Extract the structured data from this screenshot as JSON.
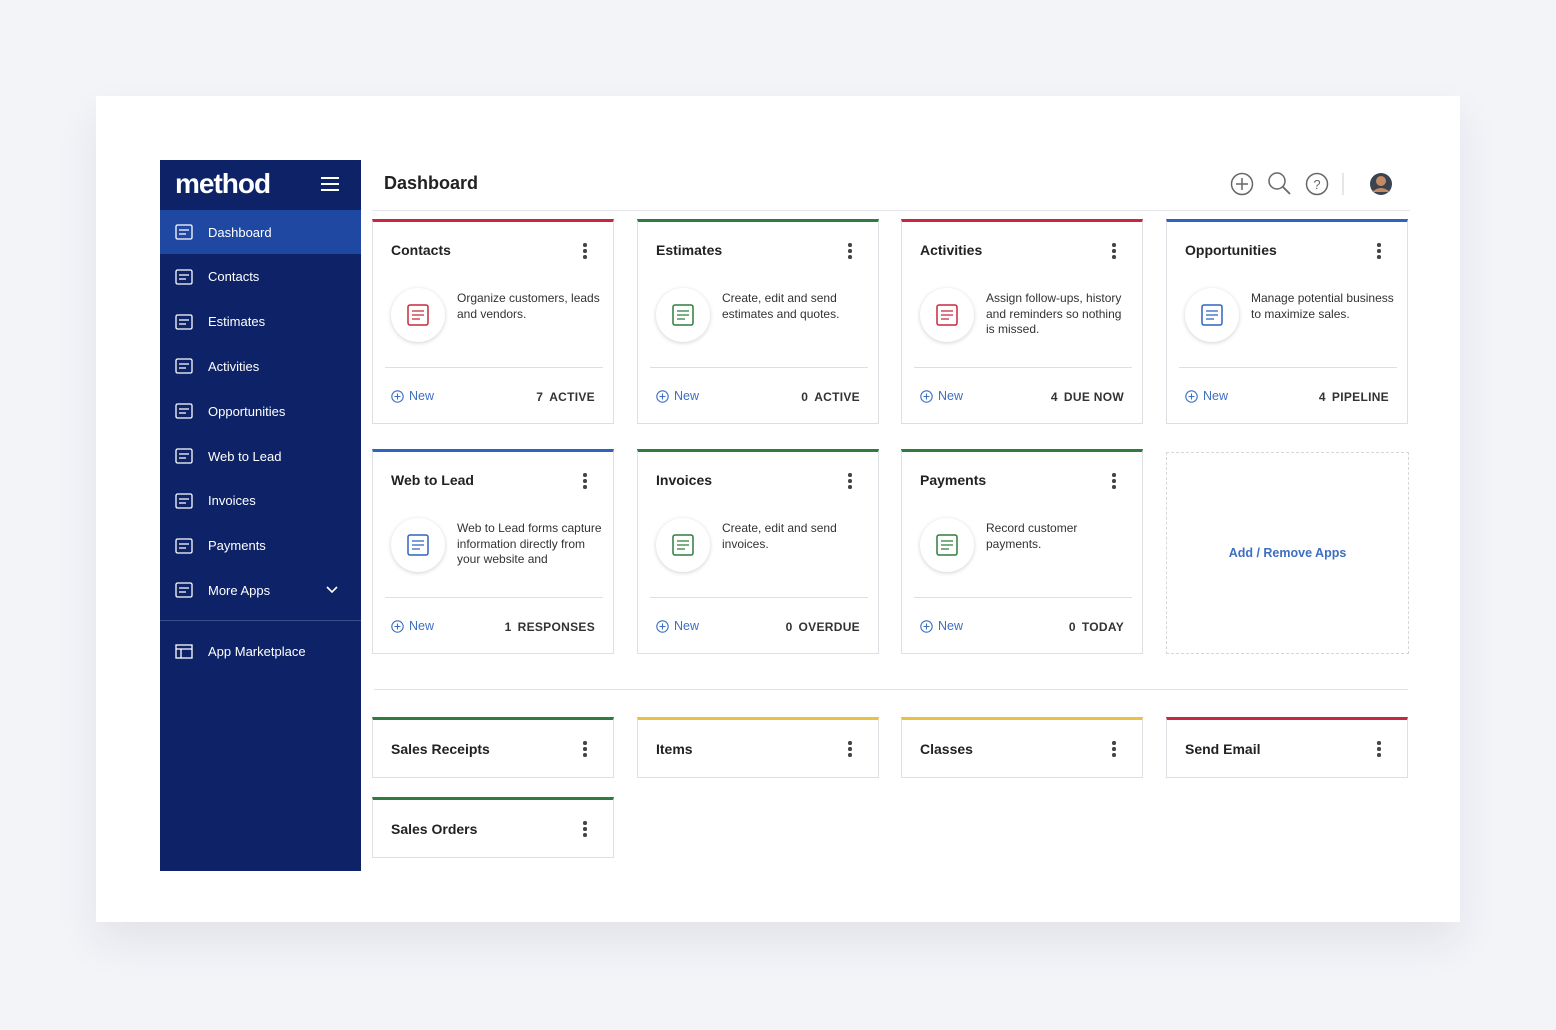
{
  "sidebar": {
    "logo": "method",
    "items": [
      {
        "label": "Dashboard",
        "active": true
      },
      {
        "label": "Contacts"
      },
      {
        "label": "Estimates"
      },
      {
        "label": "Activities"
      },
      {
        "label": "Opportunities"
      },
      {
        "label": "Web to Lead"
      },
      {
        "label": "Invoices"
      },
      {
        "label": "Payments"
      },
      {
        "label": "More Apps",
        "expandable": true
      }
    ],
    "marketplace": "App Marketplace"
  },
  "header": {
    "title": "Dashboard"
  },
  "apps": [
    {
      "title": "Contacts",
      "color": "#c8283c",
      "description": "Organize customers, leads and vendors.",
      "action": "New",
      "count": 7,
      "status": "ACTIVE"
    },
    {
      "title": "Estimates",
      "color": "#2e7d3e",
      "description": "Create, edit and send estimates and quotes.",
      "action": "New",
      "count": 0,
      "status": "ACTIVE"
    },
    {
      "title": "Activities",
      "color": "#c8283c",
      "description": "Assign follow-ups, history and reminders so nothing is missed.",
      "action": "New",
      "count": 4,
      "status": "DUE NOW"
    },
    {
      "title": "Opportunities",
      "color": "#2f63c0",
      "description": "Manage potential business to maximize sales.",
      "action": "New",
      "count": 4,
      "status": "PIPELINE"
    },
    {
      "title": "Web to Lead",
      "color": "#2f63c0",
      "description": "Web to Lead forms capture information directly from your website and",
      "action": "New",
      "count": 1,
      "status": "RESPONSES"
    },
    {
      "title": "Invoices",
      "color": "#2e7d3e",
      "description": "Create, edit and send invoices.",
      "action": "New",
      "count": 0,
      "status": "OVERDUE"
    },
    {
      "title": "Payments",
      "color": "#2e7d3e",
      "description": "Record customer payments.",
      "action": "New",
      "count": 0,
      "status": "TODAY"
    }
  ],
  "add_remove": "Add / Remove Apps",
  "compact_apps": [
    {
      "title": "Sales Receipts",
      "color": "#2e7d3e"
    },
    {
      "title": "Items",
      "color": "#e8c341"
    },
    {
      "title": "Classes",
      "color": "#e8c341"
    },
    {
      "title": "Send Email",
      "color": "#c8283c"
    },
    {
      "title": "Sales Orders",
      "color": "#2e7d3e"
    }
  ]
}
